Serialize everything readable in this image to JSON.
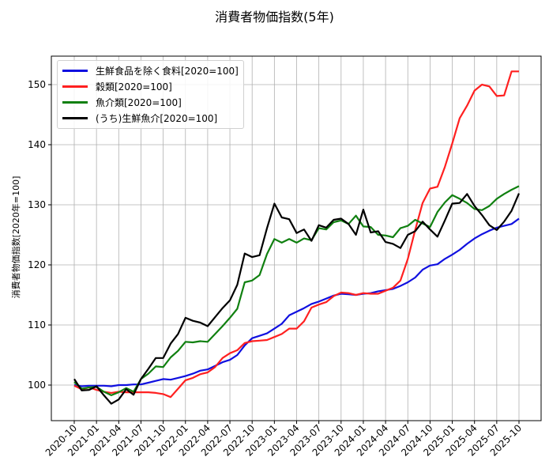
{
  "chart_data": {
    "type": "line",
    "title": "消費者物価指数(5年)",
    "xlabel": "",
    "ylabel": "消費者物価指数[2020年=100]",
    "ylim": [
      94,
      155
    ],
    "yticks": [
      100,
      110,
      120,
      130,
      140,
      150
    ],
    "xticks": [
      "2020-10",
      "2021-01",
      "2021-04",
      "2021-07",
      "2021-10",
      "2022-01",
      "2022-04",
      "2022-07",
      "2022-10",
      "2023-01",
      "2023-04",
      "2023-07",
      "2023-10",
      "2024-01",
      "2024-04",
      "2024-07",
      "2024-10",
      "2025-01",
      "2025-04",
      "2025-07",
      "2025-10"
    ],
    "grid": true,
    "legend_position": "upper left",
    "x_start": "2020-10",
    "x_step": "monthly",
    "series": [
      {
        "name": "生鮮食品を除く食料[2020=100]",
        "color": "#1010e0",
        "values": [
          100.0,
          99.8,
          99.9,
          99.9,
          99.9,
          99.8,
          100.0,
          100.0,
          100.1,
          100.1,
          100.4,
          100.7,
          101.0,
          100.9,
          101.2,
          101.5,
          101.9,
          102.4,
          102.6,
          103.2,
          103.8,
          104.2,
          105.0,
          106.6,
          107.8,
          108.2,
          108.6,
          109.4,
          110.2,
          111.6,
          112.2,
          112.8,
          113.5,
          113.9,
          114.4,
          114.9,
          115.2,
          115.1,
          115.0,
          115.2,
          115.3,
          115.6,
          115.8,
          116.0,
          116.5,
          117.1,
          117.9,
          119.2,
          119.9,
          120.1,
          121.0,
          121.7,
          122.5,
          123.5,
          124.4,
          125.1,
          125.7,
          126.2,
          126.5,
          126.8,
          127.7
        ]
      },
      {
        "name": "穀類[2020=100]",
        "color": "#ff2020",
        "values": [
          99.9,
          99.3,
          99.6,
          99.2,
          98.9,
          98.7,
          98.9,
          98.8,
          98.8,
          98.8,
          98.8,
          98.7,
          98.5,
          98.0,
          99.4,
          100.8,
          101.2,
          101.8,
          102.1,
          103.0,
          104.5,
          105.3,
          105.8,
          107.0,
          107.3,
          107.4,
          107.5,
          108.0,
          108.5,
          109.4,
          109.4,
          110.6,
          112.9,
          113.4,
          113.8,
          114.8,
          115.4,
          115.3,
          115.0,
          115.3,
          115.2,
          115.2,
          115.7,
          116.2,
          117.4,
          121.0,
          125.8,
          130.3,
          132.7,
          133.0,
          136.3,
          140.2,
          144.4,
          146.5,
          149.0,
          150.0,
          149.7,
          148.1,
          148.2,
          152.2,
          152.2
        ]
      },
      {
        "name": "魚介類[2020=100]",
        "color": "#108010",
        "values": [
          100.5,
          99.4,
          99.6,
          99.7,
          98.9,
          98.3,
          98.8,
          99.5,
          98.9,
          101.0,
          101.9,
          103.1,
          103.0,
          104.6,
          105.7,
          107.2,
          107.1,
          107.3,
          107.2,
          108.5,
          109.8,
          111.2,
          112.7,
          117.1,
          117.4,
          118.3,
          121.8,
          124.3,
          123.7,
          124.3,
          123.7,
          124.4,
          124.1,
          126.1,
          125.9,
          127.1,
          127.4,
          126.8,
          128.2,
          126.4,
          126.3,
          125.0,
          124.9,
          124.6,
          126.1,
          126.5,
          127.5,
          126.9,
          126.3,
          128.8,
          130.4,
          131.6,
          131.0,
          130.3,
          129.3,
          129.1,
          129.8,
          131.0,
          131.8,
          132.5,
          133.1
        ]
      },
      {
        "name": "(うち)生鮮魚介[2020=100]",
        "color": "#000000",
        "values": [
          101.0,
          99.1,
          99.2,
          99.8,
          98.3,
          96.9,
          97.6,
          99.3,
          98.4,
          101.0,
          102.7,
          104.5,
          104.5,
          106.9,
          108.5,
          111.2,
          110.7,
          110.4,
          109.8,
          111.3,
          112.8,
          114.1,
          116.7,
          121.9,
          121.3,
          121.6,
          126.1,
          130.2,
          127.9,
          127.6,
          125.3,
          125.9,
          124.0,
          126.6,
          126.2,
          127.5,
          127.7,
          126.8,
          125.0,
          129.2,
          125.4,
          125.6,
          123.8,
          123.5,
          122.8,
          125.0,
          125.6,
          127.2,
          125.9,
          124.7,
          127.4,
          130.2,
          130.3,
          131.8,
          129.8,
          128.3,
          126.6,
          125.8,
          127.2,
          129.0,
          131.9
        ]
      }
    ]
  },
  "header": {
    "title": "消費者物価指数(5年)"
  },
  "axes": {
    "ylabel": "消費者物価指数[2020年=100]",
    "yticks": [
      "100",
      "110",
      "120",
      "130",
      "140",
      "150"
    ],
    "xticks": [
      "2020-10",
      "2021-01",
      "2021-04",
      "2021-07",
      "2021-10",
      "2022-01",
      "2022-04",
      "2022-07",
      "2022-10",
      "2023-01",
      "2023-04",
      "2023-07",
      "2023-10",
      "2024-01",
      "2024-04",
      "2024-07",
      "2024-10",
      "2025-01",
      "2025-04",
      "2025-07",
      "2025-10"
    ]
  },
  "legend": {
    "items": [
      {
        "label": "生鮮食品を除く食料[2020=100]",
        "color": "#1010e0"
      },
      {
        "label": "穀類[2020=100]",
        "color": "#ff2020"
      },
      {
        "label": "魚介類[2020=100]",
        "color": "#108010"
      },
      {
        "label": "(うち)生鮮魚介[2020=100]",
        "color": "#000000"
      }
    ]
  }
}
